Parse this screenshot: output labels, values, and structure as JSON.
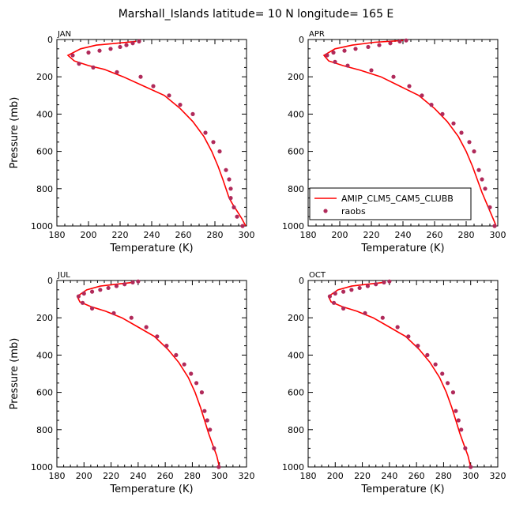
{
  "title": "Marshall_Islands  latitude= 10 N longitude= 165 E",
  "legend": {
    "model": "AMIP_CLM5_CAM5_CLUBB",
    "obs": "raobs"
  },
  "colors": {
    "model": "#ff0000",
    "obs": "#b02a5a",
    "axis": "#000000"
  },
  "chart_data": [
    {
      "type": "line",
      "panel": "JAN",
      "xlabel": "Temperature (K)",
      "ylabel": "Pressure (mb)",
      "xlim": [
        180,
        300
      ],
      "ylim": [
        1000,
        0
      ],
      "xticks": [
        180,
        200,
        220,
        240,
        260,
        280,
        300
      ],
      "yticks": [
        0,
        200,
        400,
        600,
        800,
        1000
      ],
      "series": [
        {
          "kind": "model",
          "x": [
            230,
            218,
            205,
            195,
            187,
            191,
            200,
            210,
            222,
            235,
            248,
            258,
            266,
            273,
            278,
            282,
            285,
            287,
            289,
            291,
            294,
            297,
            299.5
          ],
          "y": [
            10,
            20,
            30,
            50,
            85,
            115,
            140,
            160,
            200,
            250,
            300,
            370,
            440,
            520,
            600,
            680,
            750,
            800,
            850,
            880,
            920,
            960,
            1000
          ]
        },
        {
          "kind": "obs",
          "x": [
            232,
            228,
            224,
            220,
            214,
            207,
            200,
            190,
            194,
            203,
            218,
            233,
            241,
            251,
            258,
            266,
            274,
            279,
            283,
            287,
            289,
            290,
            290,
            292,
            294,
            297.5
          ],
          "y": [
            10,
            20,
            30,
            40,
            50,
            60,
            70,
            85,
            130,
            150,
            175,
            200,
            250,
            300,
            350,
            400,
            500,
            550,
            600,
            700,
            750,
            800,
            850,
            900,
            950,
            1000
          ]
        }
      ]
    },
    {
      "type": "line",
      "panel": "APR",
      "xlabel": "Temperature (K)",
      "ylabel": "",
      "xlim": [
        180,
        300
      ],
      "ylim": [
        1000,
        0
      ],
      "xticks": [
        180,
        200,
        220,
        240,
        260,
        280,
        300
      ],
      "yticks": [
        0,
        200,
        400,
        600,
        800,
        1000
      ],
      "series": [
        {
          "kind": "model",
          "x": [
            240,
            222,
            208,
            197,
            190,
            193,
            202,
            213,
            226,
            238,
            250,
            260,
            268,
            275,
            280,
            284,
            287,
            290,
            293,
            296,
            299
          ],
          "y": [
            5,
            15,
            30,
            50,
            85,
            115,
            140,
            165,
            200,
            250,
            300,
            370,
            440,
            520,
            600,
            680,
            750,
            820,
            880,
            940,
            1000
          ]
        },
        {
          "kind": "obs",
          "x": [
            242,
            238,
            232,
            225,
            218,
            210,
            203,
            196,
            192,
            197,
            205,
            220,
            234,
            244,
            252,
            258,
            265,
            272,
            277,
            282,
            285,
            288,
            290,
            292,
            295,
            298
          ],
          "y": [
            5,
            10,
            20,
            30,
            40,
            50,
            60,
            70,
            85,
            120,
            140,
            165,
            200,
            250,
            300,
            350,
            400,
            450,
            500,
            550,
            600,
            700,
            750,
            800,
            900,
            1000
          ]
        }
      ]
    },
    {
      "type": "line",
      "panel": "JUL",
      "xlabel": "Temperature (K)",
      "ylabel": "Pressure (mb)",
      "xlim": [
        180,
        320
      ],
      "ylim": [
        1000,
        0
      ],
      "xticks": [
        180,
        200,
        220,
        240,
        260,
        280,
        300,
        320
      ],
      "yticks": [
        0,
        200,
        400,
        600,
        800,
        1000
      ],
      "series": [
        {
          "kind": "model",
          "x": [
            236,
            224,
            212,
            202,
            195,
            197,
            205,
            216,
            228,
            240,
            252,
            262,
            270,
            277,
            282,
            286,
            289,
            292,
            295,
            298,
            300
          ],
          "y": [
            10,
            20,
            30,
            50,
            85,
            115,
            140,
            165,
            200,
            250,
            300,
            370,
            440,
            520,
            600,
            680,
            750,
            820,
            880,
            940,
            1000
          ]
        },
        {
          "kind": "obs",
          "x": [
            240,
            236,
            230,
            224,
            218,
            212,
            206,
            200,
            196,
            199,
            206,
            222,
            235,
            246,
            254,
            261,
            268,
            274,
            279,
            283,
            287,
            289,
            291,
            293,
            296,
            299.5
          ],
          "y": [
            5,
            10,
            20,
            30,
            40,
            50,
            60,
            70,
            85,
            120,
            150,
            175,
            200,
            250,
            300,
            350,
            400,
            450,
            500,
            550,
            600,
            700,
            750,
            800,
            900,
            1000
          ]
        }
      ]
    },
    {
      "type": "line",
      "panel": "OCT",
      "xlabel": "Temperature (K)",
      "ylabel": "",
      "xlim": [
        180,
        320
      ],
      "ylim": [
        1000,
        0
      ],
      "xticks": [
        180,
        200,
        220,
        240,
        260,
        280,
        300,
        320
      ],
      "yticks": [
        0,
        200,
        400,
        600,
        800,
        1000
      ],
      "series": [
        {
          "kind": "model",
          "x": [
            236,
            224,
            212,
            202,
            195,
            197,
            205,
            216,
            228,
            240,
            252,
            262,
            270,
            277,
            282,
            286,
            289,
            292,
            295,
            298,
            300
          ],
          "y": [
            10,
            20,
            30,
            50,
            85,
            115,
            140,
            165,
            200,
            250,
            300,
            370,
            440,
            520,
            600,
            680,
            750,
            820,
            880,
            940,
            1000
          ]
        },
        {
          "kind": "obs",
          "x": [
            240,
            236,
            230,
            224,
            218,
            212,
            206,
            200,
            196,
            199,
            206,
            222,
            235,
            246,
            254,
            261,
            268,
            274,
            279,
            283,
            287,
            289,
            291,
            293,
            296,
            300
          ],
          "y": [
            5,
            10,
            20,
            30,
            40,
            50,
            60,
            70,
            85,
            120,
            150,
            175,
            200,
            250,
            300,
            350,
            400,
            450,
            500,
            550,
            600,
            700,
            750,
            800,
            900,
            1000
          ]
        }
      ]
    }
  ]
}
